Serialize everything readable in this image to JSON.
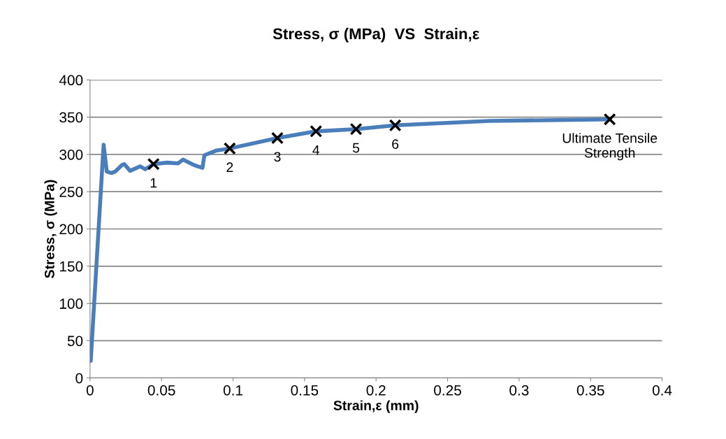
{
  "chart_data": {
    "type": "line",
    "title": "Stress, σ (MPa)  VS  Strain,ε",
    "xlabel": "Strain,ε (mm)",
    "ylabel": "Stress, σ (MPa)",
    "xlim": [
      0,
      0.4
    ],
    "xticks": [
      0,
      0.05,
      0.1,
      0.15,
      0.2,
      0.25,
      0.3,
      0.35,
      0.4
    ],
    "ylim": [
      0,
      400
    ],
    "yticks": [
      0,
      50,
      100,
      150,
      200,
      250,
      300,
      350,
      400
    ],
    "grid": "y",
    "series": [
      {
        "color": "#4a7ebb",
        "marker": "none",
        "line_style": "solid",
        "x": [
          0.0005,
          0.0095,
          0.0117,
          0.015,
          0.0176,
          0.0225,
          0.024,
          0.028,
          0.035,
          0.0386,
          0.0444,
          0.054,
          0.0615,
          0.065,
          0.0713,
          0.0737,
          0.0786,
          0.08,
          0.088,
          0.0977,
          0.131,
          0.158,
          0.186,
          0.2134,
          0.279,
          0.3634
        ],
        "values": [
          23,
          313,
          277,
          275,
          277,
          286,
          287,
          278,
          284,
          280,
          287,
          289,
          288,
          293,
          287,
          285,
          282,
          299,
          305,
          308,
          322,
          331,
          334,
          339,
          345,
          347
        ]
      },
      {
        "type": "scatter",
        "color": "#000000",
        "marker": "cross",
        "x": [
          0.0444,
          0.0977,
          0.131,
          0.158,
          0.186,
          0.2134,
          0.3634
        ],
        "values": [
          287,
          308,
          322,
          331,
          334,
          339,
          347
        ]
      }
    ],
    "annotations": [
      {
        "text": "1",
        "x": 0.0444,
        "y": 287
      },
      {
        "text": "2",
        "x": 0.0977,
        "y": 308
      },
      {
        "text": "3",
        "x": 0.131,
        "y": 322
      },
      {
        "text": "4",
        "x": 0.158,
        "y": 331
      },
      {
        "text": "5",
        "x": 0.186,
        "y": 334
      },
      {
        "text": "6",
        "x": 0.2134,
        "y": 339
      },
      {
        "text": "Ultimate Tensile\nStrength",
        "x": 0.3634,
        "y": 347
      }
    ]
  }
}
